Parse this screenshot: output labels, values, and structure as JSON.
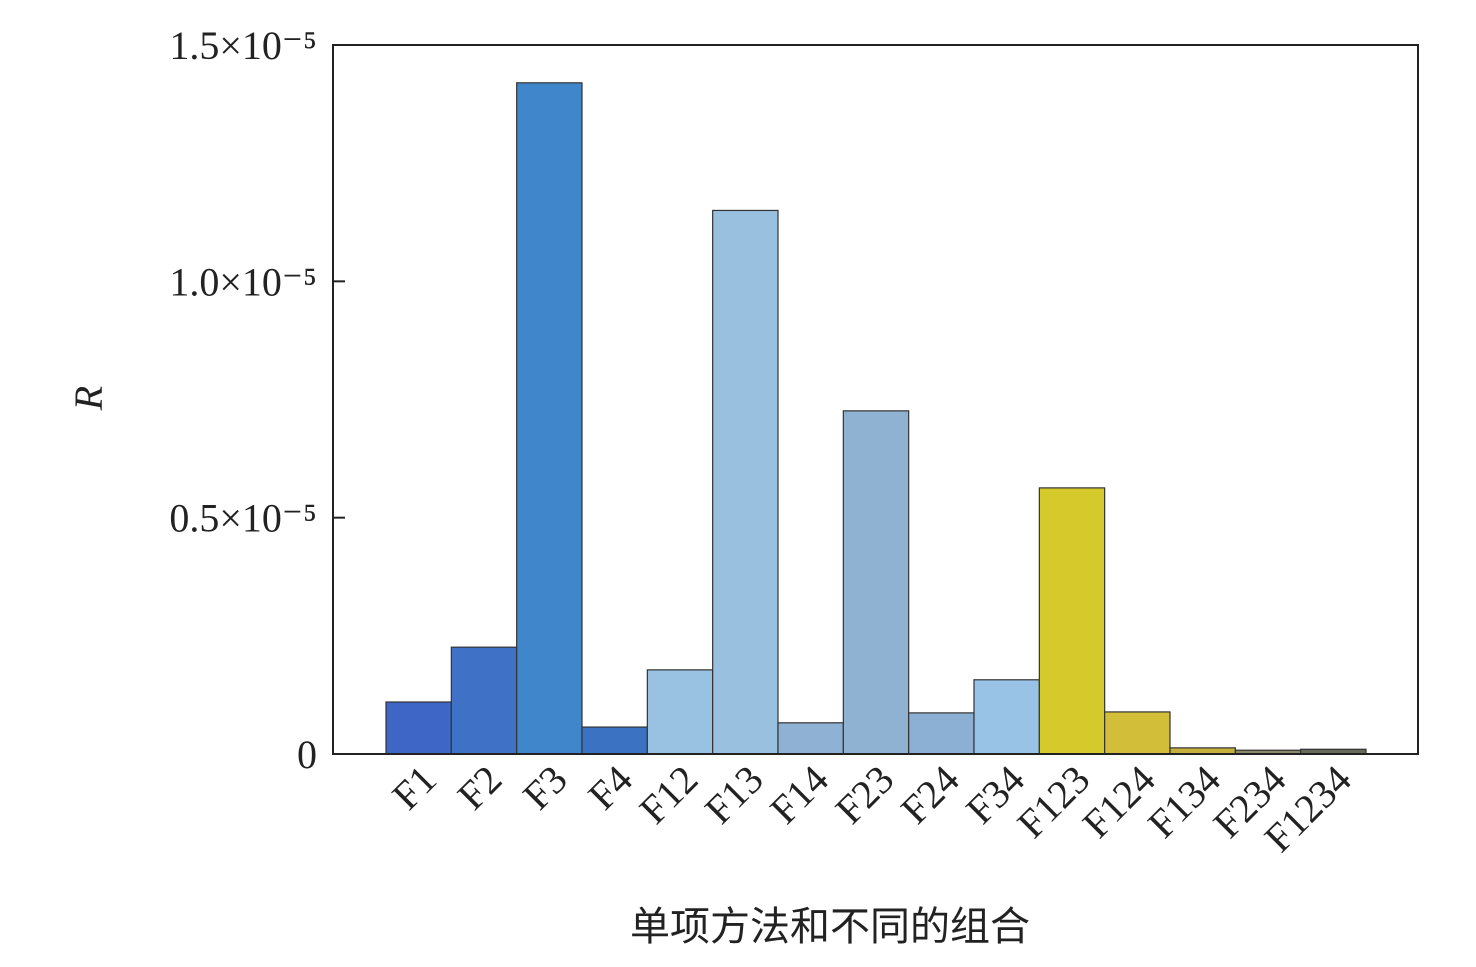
{
  "chart_data": {
    "type": "bar",
    "x_label": "单项方法和不同的组合",
    "y_label": "R",
    "categories": [
      "F1",
      "F2",
      "F3",
      "F4",
      "F12",
      "F13",
      "F14",
      "F23",
      "F24",
      "F34",
      "F123",
      "F124",
      "F134",
      "F234",
      "F1234"
    ],
    "values": [
      1.1e-06,
      2.26e-06,
      1.42e-05,
      5.7e-07,
      1.78e-06,
      1.15e-05,
      6.6e-07,
      7.26e-06,
      8.7e-07,
      1.57e-06,
      5.63e-06,
      8.9e-07,
      1.3e-07,
      8e-08,
      1e-07
    ],
    "colors": [
      "#3d66c6",
      "#3f72c6",
      "#3f86cb",
      "#3b72c2",
      "#99c2e2",
      "#9ac0e0",
      "#8fb2d4",
      "#90b2d2",
      "#8cb0d4",
      "#98c2e6",
      "#d6c92c",
      "#d2be38",
      "#c4b03a",
      "#8a8a6a",
      "#6a6a5a"
    ],
    "ylim": [
      0,
      1.5e-05
    ],
    "yticks": [
      0,
      {
        "value": 5e-06,
        "label": "0.5×10⁻⁵"
      },
      {
        "value": 1e-05,
        "label": "1.0×10⁻⁵"
      },
      {
        "value": 1.5e-05,
        "label": "1.5×10⁻⁵"
      }
    ]
  }
}
